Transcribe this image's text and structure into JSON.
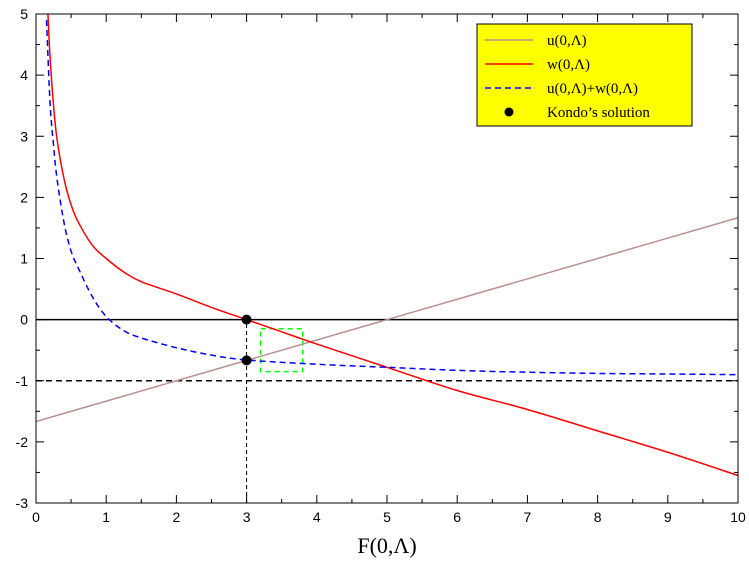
{
  "chart_data": {
    "type": "line",
    "title": "",
    "xlabel": "F(0,Λ)",
    "ylabel": "",
    "xlim": [
      0,
      10
    ],
    "ylim": [
      -3,
      5
    ],
    "xticks": [
      0,
      1,
      2,
      3,
      4,
      5,
      6,
      7,
      8,
      9,
      10
    ],
    "yticks": [
      -3,
      -2,
      -1,
      0,
      1,
      2,
      3,
      4,
      5
    ],
    "minor_ticks": true,
    "grid": false,
    "legend_position": "top-right",
    "legend_background": "#ffff00",
    "series": [
      {
        "name": "u(0,Λ)",
        "color": "#bc8f8f",
        "style": "solid",
        "x": [
          0,
          10
        ],
        "y": [
          -1.667,
          1.667
        ]
      },
      {
        "name": "w(0,Λ)",
        "color": "#ff0000",
        "style": "solid",
        "x": [
          0.17,
          0.2,
          0.25,
          0.3,
          0.4,
          0.5,
          0.6,
          0.8,
          1,
          1.25,
          1.5,
          2,
          2.5,
          3,
          3.5,
          4,
          5,
          6,
          7,
          8,
          9,
          10
        ],
        "y": [
          5.0,
          4.3,
          3.5,
          2.95,
          2.3,
          1.88,
          1.6,
          1.22,
          1.0,
          0.78,
          0.62,
          0.42,
          0.2,
          0.0,
          -0.2,
          -0.4,
          -0.78,
          -1.16,
          -1.47,
          -1.82,
          -2.17,
          -2.55
        ]
      },
      {
        "name": "u(0,Λ)+w(0,Λ)",
        "color": "#0000ff",
        "style": "dashed",
        "x": [
          0.15,
          0.2,
          0.25,
          0.3,
          0.4,
          0.5,
          0.6,
          0.8,
          1,
          1.25,
          1.5,
          2,
          2.5,
          3,
          4,
          5,
          6,
          7,
          8,
          9,
          10
        ],
        "y": [
          4.9,
          3.55,
          2.85,
          2.3,
          1.58,
          1.12,
          0.85,
          0.38,
          0.05,
          -0.18,
          -0.3,
          -0.46,
          -0.58,
          -0.66,
          -0.73,
          -0.78,
          -0.83,
          -0.86,
          -0.88,
          -0.89,
          -0.9
        ]
      }
    ],
    "points": {
      "name": "Kondo’s solution",
      "color": "#000000",
      "x": [
        3,
        3
      ],
      "y": [
        0,
        -0.667
      ]
    },
    "reference_lines": [
      {
        "orientation": "horizontal",
        "value": 0,
        "style": "solid",
        "color": "#000000"
      },
      {
        "orientation": "horizontal",
        "value": -1,
        "style": "dashed",
        "color": "#000000"
      },
      {
        "orientation": "vertical",
        "value": 3,
        "from": -3,
        "to": 0,
        "style": "dashed",
        "color": "#000000"
      }
    ],
    "highlight_box": {
      "x": [
        3.2,
        3.8
      ],
      "y": [
        -0.85,
        -0.15
      ],
      "color": "#00ff00",
      "style": "dashed"
    }
  }
}
